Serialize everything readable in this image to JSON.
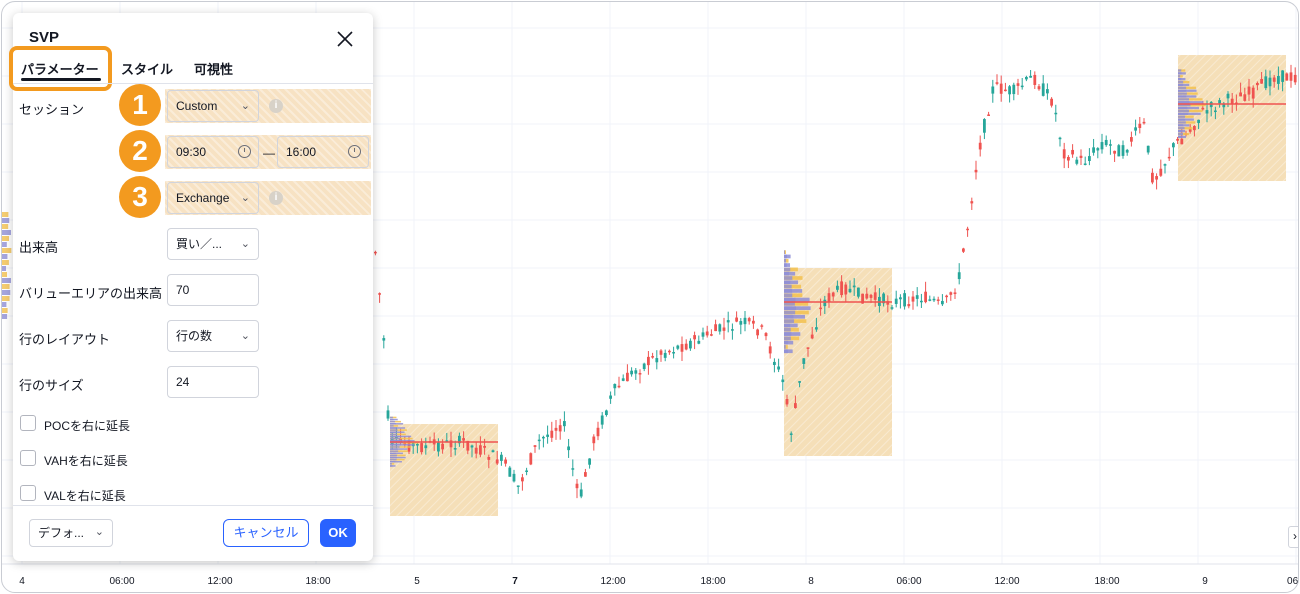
{
  "dialog": {
    "title": "SVP",
    "tabs": [
      "パラメーター",
      "スタイル",
      "可視性"
    ],
    "session_label": "セッション",
    "session_value": "Custom",
    "time_start": "09:30",
    "time_end": "16:00",
    "time_separator": "—",
    "timezone_value": "Exchange",
    "volume_label": "出来高",
    "volume_value": "買い／...",
    "value_area_label": "バリューエリアの出来高",
    "value_area_value": "70",
    "row_layout_label": "行のレイアウト",
    "row_layout_value": "行の数",
    "row_size_label": "行のサイズ",
    "row_size_value": "24",
    "checkboxes": [
      "POCを右に延長",
      "VAHを右に延長",
      "VALを右に延長"
    ],
    "defaults_label": "デフォ...",
    "cancel_label": "キャンセル",
    "ok_label": "OK"
  },
  "badges": [
    "1",
    "2",
    "3"
  ],
  "chart": {
    "x_ticks": [
      "4",
      "06:00",
      "12:00",
      "18:00",
      "5",
      "7",
      "12:00",
      "18:00",
      "8",
      "06:00",
      "12:00",
      "18:00",
      "9",
      "06:"
    ],
    "x_ticks_bold": [
      false,
      false,
      false,
      false,
      false,
      true,
      false,
      false,
      false,
      false,
      false,
      false,
      false,
      false
    ],
    "colors": {
      "up": "#26a69a",
      "down": "#ef5350",
      "profile_bg": "#f5dfb8",
      "poc": "#ef5350",
      "accent": "#f39a1f"
    }
  },
  "chart_data": {
    "type": "candlestick",
    "note_icons": [
      "info-icon",
      "clock-icon",
      "close-icon",
      "chevron-down-icon"
    ]
  }
}
